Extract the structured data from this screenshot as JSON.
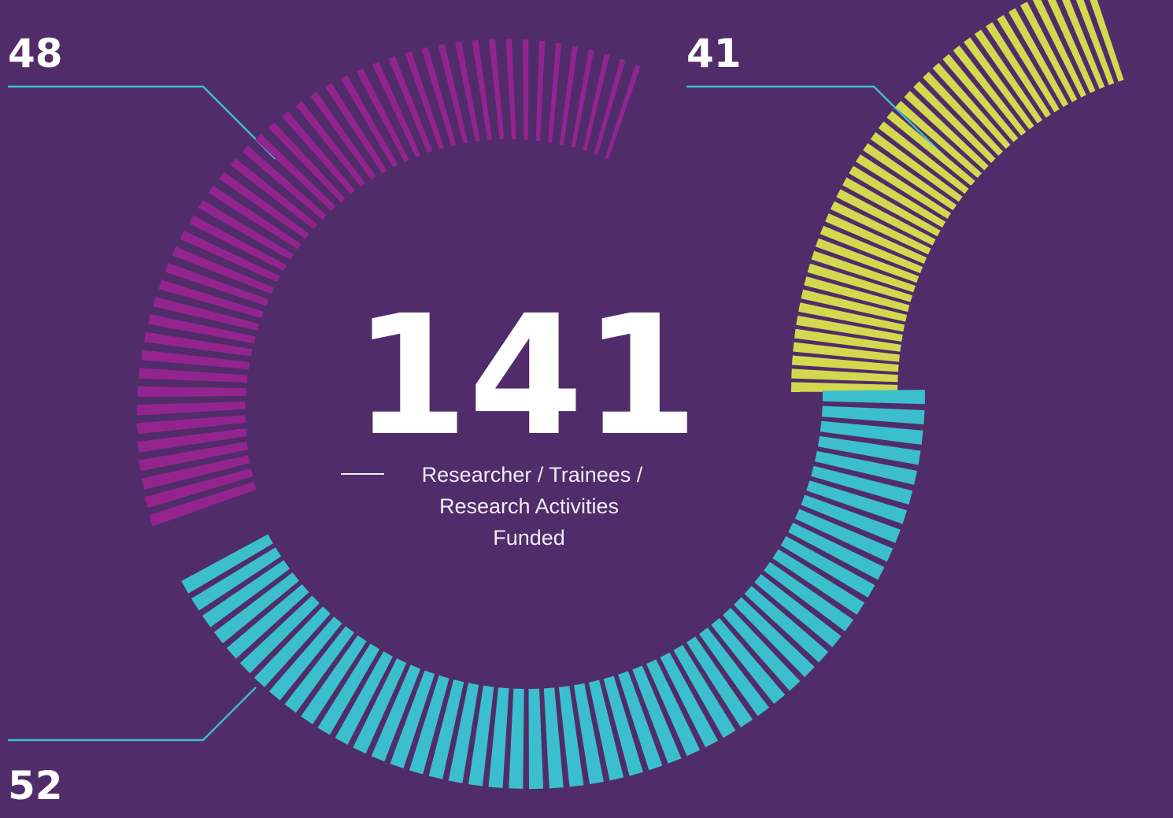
{
  "chart_data": {
    "type": "radial-ticks",
    "total": 141,
    "total_label": [
      "Researcher / Trainees /",
      "Research Activities",
      "Funded"
    ],
    "series": [
      {
        "name": "48",
        "value": 48,
        "color": "#93248e"
      },
      {
        "name": "41",
        "value": 41,
        "color": "#d4d84e"
      },
      {
        "name": "52",
        "value": 52,
        "color": "#3bbfcc"
      }
    ]
  }
}
